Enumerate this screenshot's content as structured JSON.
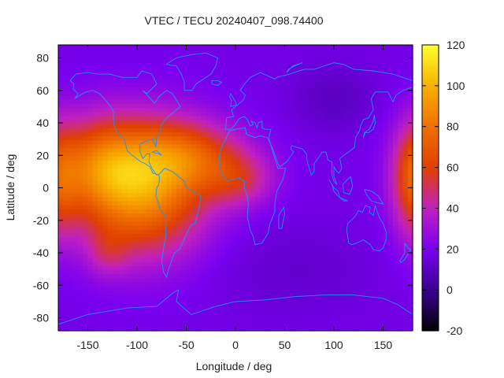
{
  "chart_data": {
    "type": "heatmap",
    "title": "VTEC / TECU 20240407_098.74400",
    "xlabel": "Longitude / deg",
    "ylabel": "Latitude / deg",
    "xlim": [
      -180,
      180
    ],
    "ylim": [
      -88,
      88
    ],
    "xticks": [
      -150,
      -100,
      -50,
      0,
      50,
      100,
      150
    ],
    "yticks": [
      -80,
      -60,
      -40,
      -20,
      0,
      20,
      40,
      60,
      80
    ],
    "colorbar": {
      "range": [
        -20,
        120
      ],
      "ticks": [
        -20,
        0,
        20,
        40,
        60,
        80,
        100,
        120
      ],
      "colors": [
        "#000000",
        "#3a0090",
        "#7a00f0",
        "#c020c0",
        "#e04000",
        "#f07000",
        "#f8b000",
        "#ffff30"
      ]
    },
    "background_value": 18,
    "blobs": [
      {
        "lon": -95,
        "lat": 0,
        "slon": 45,
        "slat": 28,
        "amp": 72
      },
      {
        "lon": -140,
        "lat": 15,
        "slon": 30,
        "slat": 20,
        "amp": 35
      },
      {
        "lon": -45,
        "lat": 20,
        "slon": 40,
        "slat": 15,
        "amp": 35
      },
      {
        "lon": 5,
        "lat": 5,
        "slon": 25,
        "slat": 12,
        "amp": 25
      },
      {
        "lon": 180,
        "lat": 5,
        "slon": 15,
        "slat": 25,
        "amp": 35
      },
      {
        "lon": -130,
        "lat": -40,
        "slon": 15,
        "slat": 10,
        "amp": 15
      },
      {
        "lon": 100,
        "lat": 55,
        "slon": 30,
        "slat": 15,
        "amp": -8
      },
      {
        "lon": 60,
        "lat": -50,
        "slon": 60,
        "slat": 20,
        "amp": -5
      }
    ],
    "coastline_color": "#1e90ff",
    "map_overlay": "world-coastlines"
  }
}
